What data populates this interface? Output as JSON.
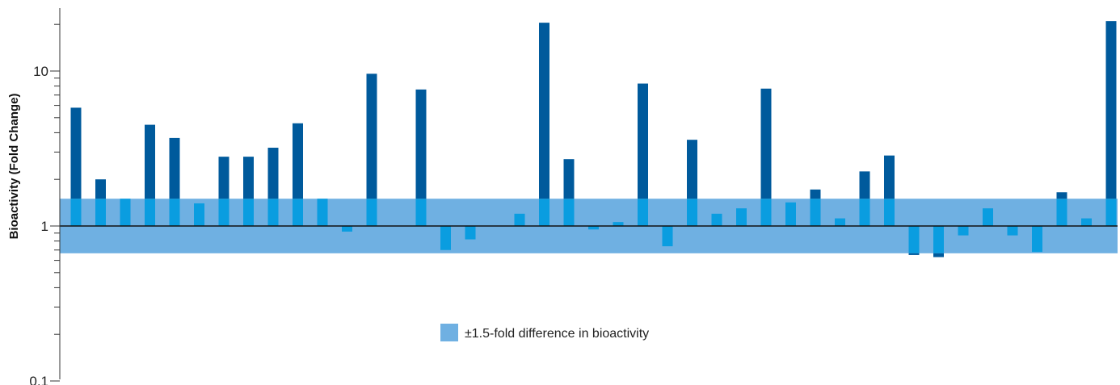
{
  "chart_data": {
    "type": "bar",
    "ylabel": "Bioactivity (Fold Change)",
    "yscale": "log",
    "ylim": [
      0.1,
      30
    ],
    "yticks": [
      {
        "value": 0.1,
        "label": "0.1"
      },
      {
        "value": 1,
        "label": "1"
      },
      {
        "value": 10,
        "label": "10"
      }
    ],
    "reference_line": 1,
    "band": {
      "low": 0.6667,
      "high": 1.5,
      "label": "±1.5-fold difference in bioactivity"
    },
    "values": [
      5.8,
      2.0,
      1.5,
      4.5,
      3.7,
      1.4,
      2.8,
      2.8,
      3.2,
      4.6,
      1.5,
      0.92,
      9.6,
      null,
      7.6,
      0.7,
      0.82,
      null,
      1.2,
      20.5,
      2.7,
      0.95,
      1.06,
      8.3,
      0.74,
      3.6,
      1.2,
      1.3,
      7.7,
      1.42,
      1.72,
      1.12,
      2.25,
      2.85,
      0.65,
      0.63,
      0.87,
      1.3,
      0.87,
      0.68,
      1.65,
      1.12,
      21.0
    ],
    "grid": false,
    "legend_position": "bottom-center"
  },
  "colors": {
    "band": "#6fb0e2",
    "bar_outside": "#005a9c",
    "bar_inside": "#0a9de0",
    "axis": "#333333",
    "ref_line": "#111111"
  }
}
